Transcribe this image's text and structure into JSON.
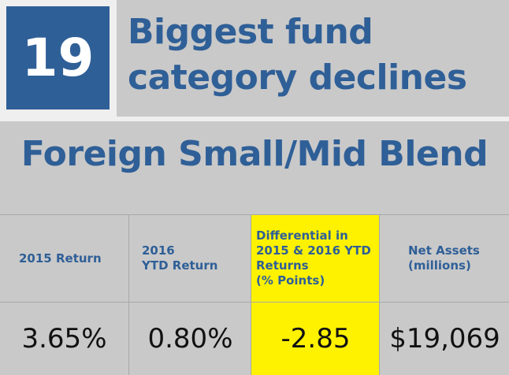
{
  "rank": "19",
  "title_lines": [
    "Biggest fund",
    "category declines"
  ],
  "category": "Foreign Small/Mid Blend",
  "columns": [
    {
      "header": "2015 Return",
      "value": "3.65%"
    },
    {
      "header": "2016\nYTD Return",
      "value": "0.80%"
    },
    {
      "header": "Differential in\n2015 & 2016 YTD\nReturns\n(% Points)",
      "value": "-2.85"
    },
    {
      "header": "Net Assets\n(millions)",
      "value": "$19,069"
    }
  ],
  "colors": {
    "accent_blue": "#2f5f97",
    "highlight_yellow": "#fff200",
    "background_gray": "#c9c9c9"
  }
}
